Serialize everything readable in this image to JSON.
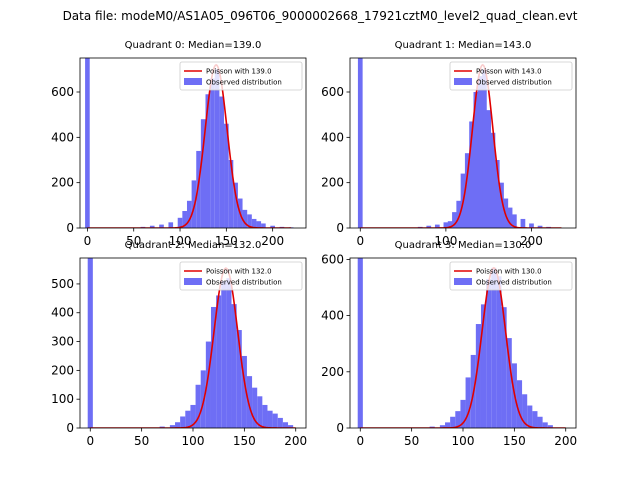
{
  "figure": {
    "suptitle": "Data file: modeM0/AS1A05_096T06_9000002668_17921cztM0_level2_quad_clean.evt",
    "colors": {
      "hist": "#6e6ef5",
      "poisson": "#e00000",
      "axis": "#000000"
    }
  },
  "chart_data": [
    {
      "type": "bar",
      "title": "Quadrant 0: Median=139.0",
      "xlim": [
        -8,
        236
      ],
      "ylim": [
        0,
        750
      ],
      "xticks": [
        0,
        50,
        100,
        150,
        200
      ],
      "yticks": [
        0,
        200,
        400,
        600
      ],
      "legend": {
        "placement": "top-right",
        "entries": [
          "Poisson with 139.0",
          "Observed distribution"
        ]
      },
      "bin_width": 5,
      "bins": [
        {
          "x": 0,
          "y": 750
        },
        {
          "x": 60,
          "y": 5
        },
        {
          "x": 70,
          "y": 10
        },
        {
          "x": 80,
          "y": 15
        },
        {
          "x": 90,
          "y": 25
        },
        {
          "x": 100,
          "y": 45
        },
        {
          "x": 105,
          "y": 75
        },
        {
          "x": 110,
          "y": 120
        },
        {
          "x": 115,
          "y": 210
        },
        {
          "x": 120,
          "y": 340
        },
        {
          "x": 125,
          "y": 480
        },
        {
          "x": 130,
          "y": 590
        },
        {
          "x": 135,
          "y": 660
        },
        {
          "x": 140,
          "y": 700
        },
        {
          "x": 145,
          "y": 580
        },
        {
          "x": 150,
          "y": 460
        },
        {
          "x": 155,
          "y": 300
        },
        {
          "x": 160,
          "y": 200
        },
        {
          "x": 165,
          "y": 130
        },
        {
          "x": 170,
          "y": 80
        },
        {
          "x": 175,
          "y": 60
        },
        {
          "x": 180,
          "y": 40
        },
        {
          "x": 185,
          "y": 30
        },
        {
          "x": 190,
          "y": 20
        },
        {
          "x": 200,
          "y": 10
        },
        {
          "x": 210,
          "y": 5
        },
        {
          "x": 220,
          "y": 3
        }
      ],
      "poisson": {
        "mean": 139.0,
        "peak": 720,
        "x_range": [
          0,
          220
        ]
      }
    },
    {
      "type": "bar",
      "title": "Quadrant 1: Median=143.0",
      "xlim": [
        -12,
        252
      ],
      "ylim": [
        0,
        750
      ],
      "xticks": [
        0,
        100,
        200
      ],
      "yticks": [
        0,
        200,
        400,
        600
      ],
      "legend": {
        "placement": "top-right",
        "entries": [
          "Poisson with 143.0",
          "Observed distribution"
        ]
      },
      "bin_width": 5.5,
      "bins": [
        {
          "x": 0,
          "y": 750
        },
        {
          "x": 70,
          "y": 5
        },
        {
          "x": 80,
          "y": 10
        },
        {
          "x": 90,
          "y": 15
        },
        {
          "x": 100,
          "y": 25
        },
        {
          "x": 105,
          "y": 30
        },
        {
          "x": 110,
          "y": 70
        },
        {
          "x": 115,
          "y": 120
        },
        {
          "x": 120,
          "y": 240
        },
        {
          "x": 125,
          "y": 330
        },
        {
          "x": 130,
          "y": 470
        },
        {
          "x": 135,
          "y": 600
        },
        {
          "x": 140,
          "y": 670
        },
        {
          "x": 145,
          "y": 700
        },
        {
          "x": 150,
          "y": 520
        },
        {
          "x": 155,
          "y": 420
        },
        {
          "x": 160,
          "y": 300
        },
        {
          "x": 165,
          "y": 200
        },
        {
          "x": 170,
          "y": 130
        },
        {
          "x": 175,
          "y": 90
        },
        {
          "x": 180,
          "y": 60
        },
        {
          "x": 190,
          "y": 40
        },
        {
          "x": 200,
          "y": 20
        },
        {
          "x": 210,
          "y": 10
        },
        {
          "x": 220,
          "y": 5
        }
      ],
      "poisson": {
        "mean": 143.0,
        "peak": 720,
        "x_range": [
          0,
          235
        ]
      }
    },
    {
      "type": "bar",
      "title": "Quadrant 2: Median=132.0",
      "xlim": [
        -10,
        210
      ],
      "ylim": [
        0,
        590
      ],
      "xticks": [
        0,
        50,
        100,
        150,
        200
      ],
      "yticks": [
        0,
        100,
        200,
        300,
        400,
        500
      ],
      "legend": {
        "placement": "top-right",
        "entries": [
          "Poisson with 132.0",
          "Observed distribution"
        ]
      },
      "bin_width": 5,
      "bins": [
        {
          "x": 0,
          "y": 590
        },
        {
          "x": 70,
          "y": 5
        },
        {
          "x": 80,
          "y": 10
        },
        {
          "x": 85,
          "y": 20
        },
        {
          "x": 90,
          "y": 40
        },
        {
          "x": 95,
          "y": 60
        },
        {
          "x": 100,
          "y": 80
        },
        {
          "x": 105,
          "y": 150
        },
        {
          "x": 110,
          "y": 200
        },
        {
          "x": 115,
          "y": 300
        },
        {
          "x": 120,
          "y": 420
        },
        {
          "x": 125,
          "y": 460
        },
        {
          "x": 130,
          "y": 510
        },
        {
          "x": 135,
          "y": 520
        },
        {
          "x": 140,
          "y": 430
        },
        {
          "x": 145,
          "y": 340
        },
        {
          "x": 150,
          "y": 250
        },
        {
          "x": 155,
          "y": 180
        },
        {
          "x": 160,
          "y": 140
        },
        {
          "x": 165,
          "y": 110
        },
        {
          "x": 170,
          "y": 80
        },
        {
          "x": 175,
          "y": 60
        },
        {
          "x": 180,
          "y": 50
        },
        {
          "x": 185,
          "y": 35
        },
        {
          "x": 190,
          "y": 20
        },
        {
          "x": 195,
          "y": 10
        }
      ],
      "poisson": {
        "mean": 132.0,
        "peak": 555,
        "x_range": [
          0,
          200
        ]
      }
    },
    {
      "type": "bar",
      "title": "Quadrant 3: Median=130.0",
      "xlim": [
        -10,
        210
      ],
      "ylim": [
        0,
        605
      ],
      "xticks": [
        0,
        50,
        100,
        150,
        200
      ],
      "yticks": [
        0,
        200,
        400,
        600
      ],
      "legend": {
        "placement": "top-right",
        "entries": [
          "Poisson with 130.0",
          "Observed distribution"
        ]
      },
      "bin_width": 5,
      "bins": [
        {
          "x": 0,
          "y": 605
        },
        {
          "x": 70,
          "y": 5
        },
        {
          "x": 80,
          "y": 10
        },
        {
          "x": 85,
          "y": 20
        },
        {
          "x": 90,
          "y": 40
        },
        {
          "x": 95,
          "y": 60
        },
        {
          "x": 100,
          "y": 100
        },
        {
          "x": 105,
          "y": 180
        },
        {
          "x": 110,
          "y": 260
        },
        {
          "x": 115,
          "y": 370
        },
        {
          "x": 120,
          "y": 440
        },
        {
          "x": 125,
          "y": 530
        },
        {
          "x": 130,
          "y": 570
        },
        {
          "x": 135,
          "y": 540
        },
        {
          "x": 140,
          "y": 430
        },
        {
          "x": 145,
          "y": 320
        },
        {
          "x": 150,
          "y": 230
        },
        {
          "x": 155,
          "y": 170
        },
        {
          "x": 160,
          "y": 120
        },
        {
          "x": 165,
          "y": 80
        },
        {
          "x": 170,
          "y": 60
        },
        {
          "x": 175,
          "y": 40
        },
        {
          "x": 180,
          "y": 20
        },
        {
          "x": 185,
          "y": 10
        }
      ],
      "poisson": {
        "mean": 130.0,
        "peak": 570,
        "x_range": [
          0,
          200
        ]
      }
    }
  ]
}
